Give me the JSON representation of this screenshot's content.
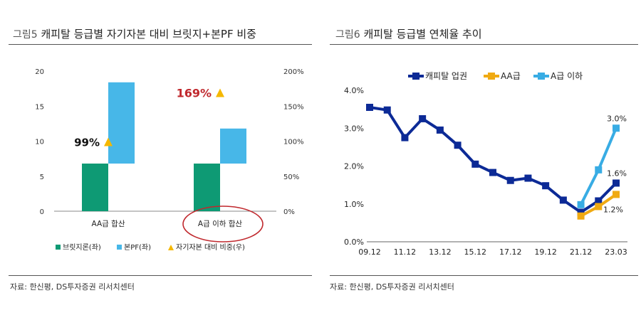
{
  "colors": {
    "bridge": "#0e9a74",
    "pf": "#47b7e8",
    "ratio_marker": "#f5b800",
    "ratio_label": "#c0282d",
    "highlight_ellipse": "#c0282d",
    "capital_industry": "#0c2a96",
    "aa_grade": "#f0aa12",
    "a_or_below": "#38ace4"
  },
  "left": {
    "title_num": "그림5",
    "title_text": "캐피탈 등급별 자기자본 대비 브릿지+본PF 비중",
    "source": "자료: 한신평, DS투자증권 리서치센터",
    "legend": {
      "bridge": "브릿지론(좌)",
      "pf": "본PF(좌)",
      "ratio": "자기자본 대비 비중(우)"
    },
    "chart_data": {
      "type": "bar",
      "stacked": true,
      "categories": [
        "AA급 합산",
        "A급 이하 합산"
      ],
      "series": [
        {
          "name": "브릿지론(좌)",
          "axis": "left",
          "values": [
            6.8,
            6.8
          ]
        },
        {
          "name": "본PF(좌)",
          "axis": "left",
          "values": [
            11.6,
            5.0
          ]
        },
        {
          "name": "자기자본 대비 비중(우)",
          "axis": "right",
          "type": "marker",
          "values": [
            99,
            169
          ],
          "labels": [
            "99%",
            "169%"
          ]
        }
      ],
      "ylim_left": [
        0,
        20
      ],
      "yticks_left": [
        "0",
        "5",
        "10",
        "15",
        "20"
      ],
      "ylim_right": [
        0,
        200
      ],
      "yticks_right": [
        "0%",
        "50%",
        "100%",
        "150%",
        "200%"
      ],
      "annotation": "A급 이하 합산 highlighted with red ellipse"
    }
  },
  "right": {
    "title_num": "그림6",
    "title_text": "캐피탈 등급별 연체율 추이",
    "source": "자료: 한신평, DS투자증권 리서치센터",
    "chart_data": {
      "type": "line",
      "x": [
        "09.12",
        "10.12",
        "11.12",
        "12.12",
        "13.12",
        "14.12",
        "15.12",
        "16.12",
        "17.12",
        "18.12",
        "19.12",
        "20.12",
        "21.12",
        "22.12",
        "23.03"
      ],
      "xticks": [
        "09.12",
        "11.12",
        "13.12",
        "15.12",
        "17.12",
        "19.12",
        "21.12",
        "23.03"
      ],
      "series": [
        {
          "name": "캐피탈 업권",
          "values": [
            3.55,
            3.48,
            2.75,
            3.25,
            2.95,
            2.55,
            2.05,
            1.83,
            1.62,
            1.68,
            1.48,
            1.1,
            0.78,
            1.08,
            1.55
          ],
          "end_label": "1.6%"
        },
        {
          "name": "AA급",
          "values": [
            null,
            null,
            null,
            null,
            null,
            null,
            null,
            null,
            null,
            null,
            null,
            null,
            0.68,
            0.93,
            1.25
          ],
          "end_label": "1.2%"
        },
        {
          "name": "A급 이하",
          "values": [
            null,
            null,
            null,
            null,
            null,
            null,
            null,
            null,
            null,
            null,
            null,
            null,
            0.98,
            1.9,
            3.0
          ],
          "end_label": "3.0%"
        }
      ],
      "ylim": [
        0,
        4
      ],
      "yticks": [
        "0.0%",
        "1.0%",
        "2.0%",
        "3.0%",
        "4.0%"
      ]
    }
  }
}
